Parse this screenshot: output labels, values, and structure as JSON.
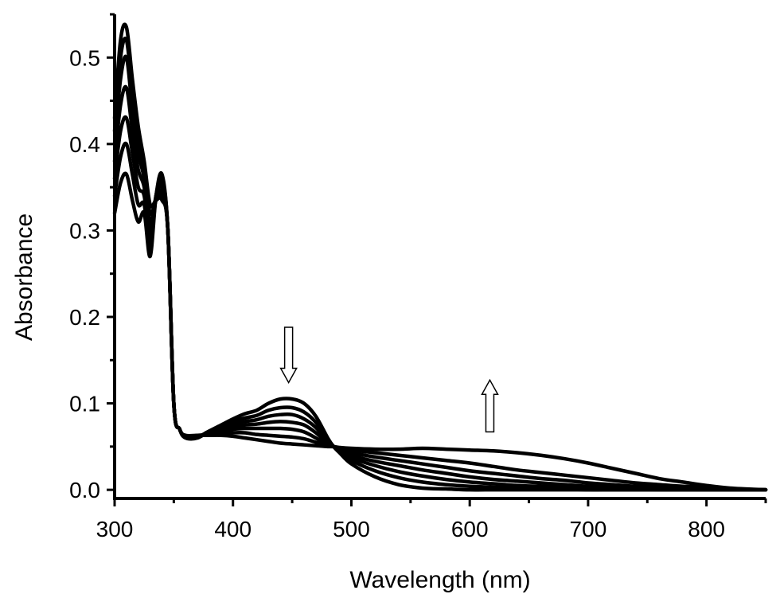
{
  "chart_data": {
    "type": "line",
    "title": "",
    "xlabel": "Wavelength (nm)",
    "ylabel": "Absorbance",
    "xlim": [
      300,
      850
    ],
    "ylim": [
      -0.01,
      0.55
    ],
    "x_ticks": [
      300,
      400,
      500,
      600,
      700,
      800
    ],
    "x_tick_labels": [
      "300",
      "400",
      "500",
      "600",
      "700",
      "800"
    ],
    "y_ticks": [
      0.0,
      0.1,
      0.2,
      0.3,
      0.4,
      0.5
    ],
    "y_tick_labels": [
      "0.0",
      "0.1",
      "0.2",
      "0.3",
      "0.4",
      "0.5"
    ],
    "grid": false,
    "legend": "none",
    "series_color": "#000000",
    "x": [
      300,
      305,
      310,
      315,
      320,
      325,
      330,
      335,
      340,
      345,
      350,
      355,
      360,
      370,
      380,
      390,
      400,
      410,
      420,
      430,
      440,
      450,
      460,
      470,
      480,
      485,
      490,
      500,
      520,
      540,
      560,
      580,
      600,
      620,
      640,
      660,
      680,
      700,
      720,
      740,
      760,
      780,
      800,
      820,
      850
    ],
    "series": [
      {
        "values": [
          0.32,
          0.355,
          0.365,
          0.335,
          0.31,
          0.32,
          0.27,
          0.34,
          0.365,
          0.3,
          0.1,
          0.07,
          0.06,
          0.06,
          0.068,
          0.075,
          0.082,
          0.088,
          0.092,
          0.1,
          0.105,
          0.105,
          0.1,
          0.085,
          0.06,
          0.05,
          0.043,
          0.03,
          0.015,
          0.006,
          0.002,
          0.001,
          0.0,
          0.0,
          0.0,
          0.0,
          0.0,
          0.0,
          0.0,
          0.0,
          0.0,
          0.0,
          0.0,
          0.0,
          0.0
        ]
      },
      {
        "values": [
          0.34,
          0.385,
          0.4,
          0.365,
          0.33,
          0.33,
          0.28,
          0.34,
          0.36,
          0.3,
          0.1,
          0.07,
          0.06,
          0.061,
          0.068,
          0.073,
          0.079,
          0.083,
          0.086,
          0.092,
          0.095,
          0.095,
          0.09,
          0.078,
          0.058,
          0.05,
          0.044,
          0.034,
          0.022,
          0.014,
          0.009,
          0.006,
          0.004,
          0.003,
          0.002,
          0.001,
          0.001,
          0.0,
          0.0,
          0.0,
          0.0,
          0.0,
          0.0,
          0.0,
          0.0
        ]
      },
      {
        "values": [
          0.36,
          0.415,
          0.43,
          0.39,
          0.35,
          0.34,
          0.29,
          0.34,
          0.355,
          0.3,
          0.1,
          0.07,
          0.061,
          0.061,
          0.067,
          0.071,
          0.076,
          0.079,
          0.081,
          0.085,
          0.087,
          0.087,
          0.082,
          0.072,
          0.056,
          0.05,
          0.045,
          0.037,
          0.028,
          0.021,
          0.016,
          0.012,
          0.009,
          0.007,
          0.005,
          0.004,
          0.003,
          0.002,
          0.001,
          0.001,
          0.0,
          0.0,
          0.0,
          0.0,
          0.0
        ]
      },
      {
        "values": [
          0.38,
          0.445,
          0.465,
          0.415,
          0.37,
          0.35,
          0.3,
          0.34,
          0.35,
          0.3,
          0.1,
          0.07,
          0.061,
          0.062,
          0.066,
          0.069,
          0.073,
          0.075,
          0.076,
          0.078,
          0.079,
          0.078,
          0.075,
          0.066,
          0.054,
          0.05,
          0.046,
          0.04,
          0.033,
          0.028,
          0.023,
          0.019,
          0.015,
          0.012,
          0.01,
          0.008,
          0.006,
          0.004,
          0.003,
          0.002,
          0.001,
          0.001,
          0.0,
          0.0,
          0.0
        ]
      },
      {
        "values": [
          0.4,
          0.475,
          0.5,
          0.44,
          0.39,
          0.36,
          0.31,
          0.335,
          0.345,
          0.3,
          0.1,
          0.07,
          0.062,
          0.062,
          0.065,
          0.067,
          0.07,
          0.071,
          0.071,
          0.071,
          0.071,
          0.07,
          0.067,
          0.06,
          0.052,
          0.05,
          0.047,
          0.043,
          0.038,
          0.034,
          0.03,
          0.026,
          0.022,
          0.019,
          0.016,
          0.013,
          0.011,
          0.008,
          0.006,
          0.004,
          0.003,
          0.002,
          0.001,
          0.0,
          0.0
        ]
      },
      {
        "values": [
          0.415,
          0.5,
          0.52,
          0.46,
          0.405,
          0.37,
          0.32,
          0.335,
          0.34,
          0.3,
          0.1,
          0.07,
          0.062,
          0.063,
          0.064,
          0.065,
          0.066,
          0.066,
          0.064,
          0.063,
          0.062,
          0.061,
          0.059,
          0.055,
          0.051,
          0.05,
          0.048,
          0.046,
          0.043,
          0.04,
          0.037,
          0.034,
          0.031,
          0.027,
          0.023,
          0.02,
          0.017,
          0.014,
          0.011,
          0.008,
          0.006,
          0.004,
          0.003,
          0.001,
          0.0
        ]
      },
      {
        "values": [
          0.43,
          0.52,
          0.535,
          0.475,
          0.42,
          0.38,
          0.33,
          0.335,
          0.335,
          0.3,
          0.1,
          0.07,
          0.063,
          0.063,
          0.063,
          0.063,
          0.062,
          0.06,
          0.058,
          0.056,
          0.054,
          0.053,
          0.052,
          0.051,
          0.05,
          0.05,
          0.049,
          0.048,
          0.047,
          0.047,
          0.048,
          0.047,
          0.046,
          0.045,
          0.043,
          0.04,
          0.036,
          0.031,
          0.025,
          0.019,
          0.013,
          0.009,
          0.005,
          0.002,
          0.0
        ]
      }
    ],
    "annotations": [
      {
        "shape": "arrow",
        "direction": "down",
        "x": 447,
        "y_top": 0.188,
        "y_tip": 0.124
      },
      {
        "shape": "arrow",
        "direction": "up",
        "x": 617,
        "y_tip": 0.127,
        "y_bottom": 0.067
      }
    ]
  }
}
